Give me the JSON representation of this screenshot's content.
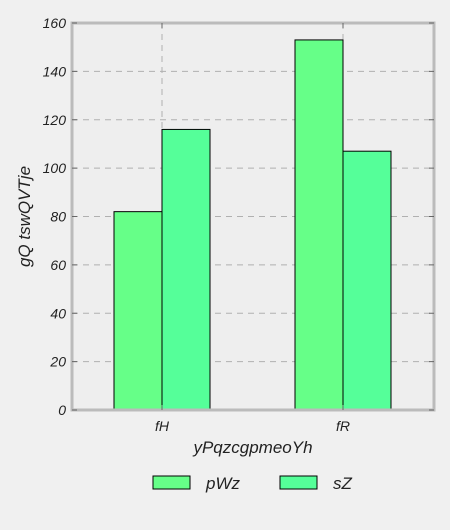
{
  "chart_data": {
    "type": "bar",
    "title": "",
    "xlabel": "yPqzcgpmeoYh",
    "ylabel": "gQ tswQVTje",
    "categories": [
      "fH",
      "fR"
    ],
    "series": [
      {
        "name": "pWz",
        "values": [
          82,
          153
        ],
        "color": "#66ff88"
      },
      {
        "name": "sZ",
        "values": [
          116,
          107
        ],
        "color": "#55ff99"
      }
    ],
    "ylim": [
      0,
      160
    ],
    "yticks": [
      0,
      20,
      40,
      60,
      80,
      100,
      120,
      140,
      160
    ],
    "grid": true,
    "legend_position": "bottom-center",
    "colors": {
      "background": "#f0f0f0",
      "plot_area": "#eeeeee",
      "frame": "#bbbbbb",
      "grid": "#b0b0b0",
      "bar_edge": "#000000",
      "text": "#222222"
    }
  }
}
